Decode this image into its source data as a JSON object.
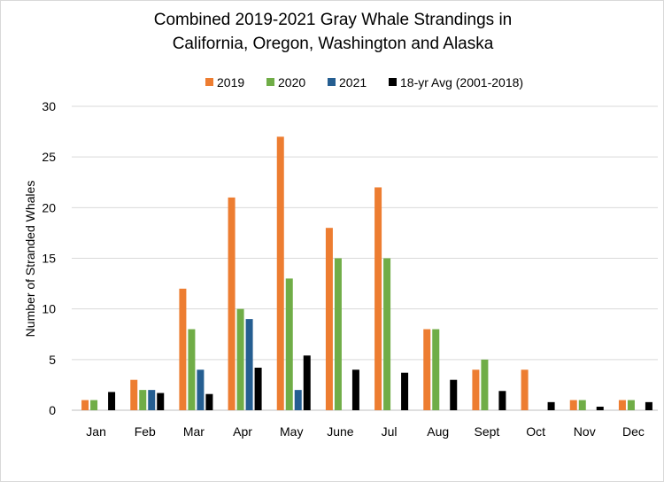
{
  "chart_data": {
    "type": "bar",
    "title": [
      "Combined 2019-2021 Gray Whale Strandings in",
      "California, Oregon, Washington and Alaska"
    ],
    "xlabel": "",
    "ylabel": "Number of Stranded Whales",
    "ylim": [
      0,
      30
    ],
    "yticks": [
      0,
      5,
      10,
      15,
      20,
      25,
      30
    ],
    "grid": true,
    "legend_position": "top",
    "categories": [
      "Jan",
      "Feb",
      "Mar",
      "Apr",
      "May",
      "June",
      "Jul",
      "Aug",
      "Sept",
      "Oct",
      "Nov",
      "Dec"
    ],
    "series": [
      {
        "name": "2019",
        "color": "#ED7D31",
        "values": [
          1,
          3,
          12,
          21,
          27,
          18,
          22,
          8,
          4,
          4,
          1,
          1
        ]
      },
      {
        "name": "2020",
        "color": "#70AD47",
        "values": [
          1,
          2,
          8,
          10,
          13,
          15,
          15,
          8,
          5,
          0,
          1,
          1
        ]
      },
      {
        "name": "2021",
        "color": "#255E91",
        "values": [
          0,
          2,
          4,
          9,
          2,
          0,
          0,
          0,
          0,
          0,
          0,
          0
        ]
      },
      {
        "name": "18-yr Avg (2001-2018)",
        "color": "#000000",
        "values": [
          1.8,
          1.7,
          1.6,
          4.2,
          5.4,
          4.0,
          3.7,
          3.0,
          1.9,
          0.8,
          0.35,
          0.8
        ]
      }
    ]
  }
}
